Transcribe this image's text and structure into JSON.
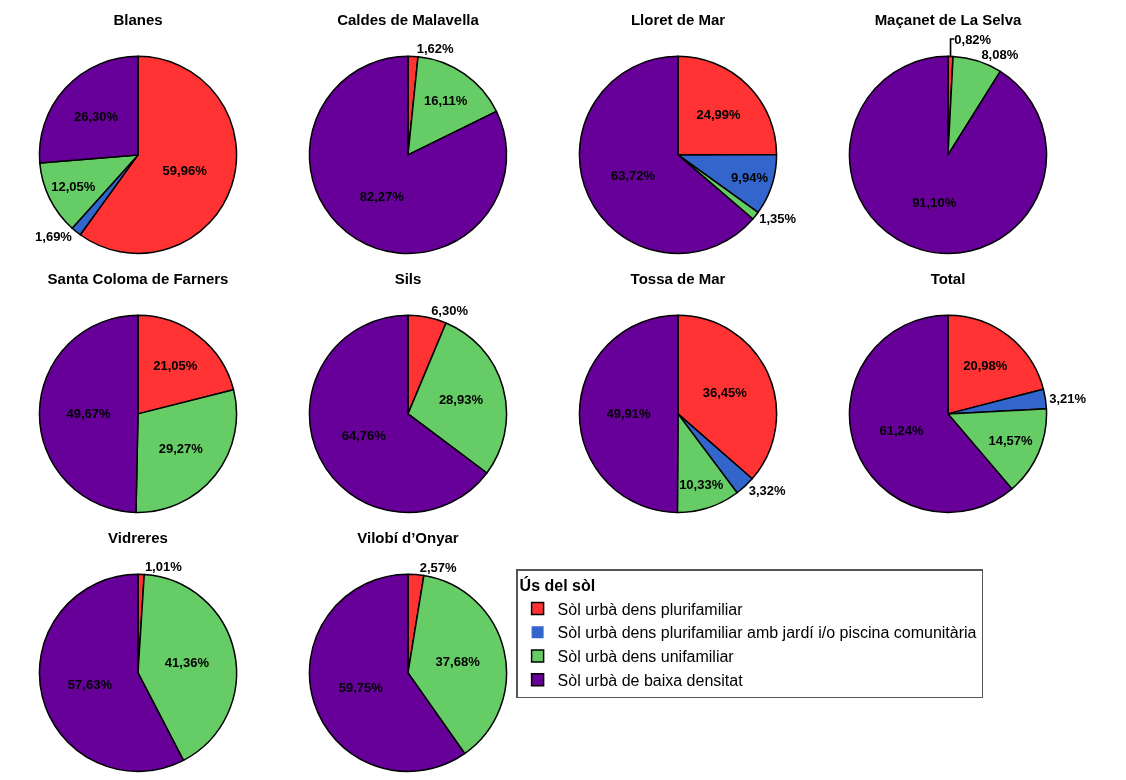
{
  "chart_data": [
    {
      "type": "pie",
      "title": "Blanes",
      "categories": [
        null,
        null,
        null,
        null
      ],
      "values": [
        59.96,
        1.69,
        12.05,
        26.3
      ],
      "value_labels": [
        "59,96%",
        "1,69%",
        "12,05%",
        "26,30%"
      ],
      "colors": [
        "#ff3333",
        "#3366cc",
        "#66cc66",
        "#660099"
      ],
      "legend": false
    },
    {
      "type": "pie",
      "title": "Caldes de Malavella",
      "categories": [
        null,
        null,
        null,
        null
      ],
      "values": [
        1.62,
        0,
        16.11,
        82.27
      ],
      "value_labels": [
        "1,62%",
        null,
        "16,11%",
        "82,27%"
      ],
      "colors": [
        "#ff3333",
        "#3366cc",
        "#66cc66",
        "#660099"
      ],
      "legend": false
    },
    {
      "type": "pie",
      "title": "Lloret de Mar",
      "categories": [
        null,
        null,
        null,
        null
      ],
      "values": [
        24.99,
        9.94,
        1.35,
        63.72
      ],
      "value_labels": [
        "24,99%",
        "9,94%",
        "1,35%",
        "63,72%"
      ],
      "colors": [
        "#ff3333",
        "#3366cc",
        "#66cc66",
        "#660099"
      ],
      "legend": false
    },
    {
      "type": "pie",
      "title": "Maçanet de La Selva",
      "categories": [
        null,
        null,
        null,
        null
      ],
      "values": [
        0.82,
        0,
        8.08,
        91.1
      ],
      "value_labels": [
        "0,82%",
        null,
        "8,08%",
        "91,10%"
      ],
      "colors": [
        "#ff3333",
        "#3366cc",
        "#66cc66",
        "#660099"
      ],
      "legend": false
    },
    {
      "type": "pie",
      "title": "Santa Coloma de Farners",
      "categories": [
        null,
        null,
        null,
        null
      ],
      "values": [
        21.05,
        0,
        29.27,
        49.67
      ],
      "value_labels": [
        "21,05%",
        null,
        "29,27%",
        "49,67%"
      ],
      "colors": [
        "#ff3333",
        "#3366cc",
        "#66cc66",
        "#660099"
      ],
      "legend": false
    },
    {
      "type": "pie",
      "title": "Sils",
      "categories": [
        null,
        null,
        null,
        null
      ],
      "values": [
        6.3,
        0,
        28.93,
        64.76
      ],
      "value_labels": [
        "6,30%",
        null,
        "28,93%",
        "64,76%"
      ],
      "colors": [
        "#ff3333",
        "#3366cc",
        "#66cc66",
        "#660099"
      ],
      "legend": false
    },
    {
      "type": "pie",
      "title": "Tossa de Mar",
      "categories": [
        null,
        null,
        null,
        null
      ],
      "values": [
        36.45,
        3.32,
        10.33,
        49.91
      ],
      "value_labels": [
        "36,45%",
        "3,32%",
        "10,33%",
        "49,91%"
      ],
      "colors": [
        "#ff3333",
        "#3366cc",
        "#66cc66",
        "#660099"
      ],
      "legend": false
    },
    {
      "type": "pie",
      "title": "Total",
      "categories": [
        null,
        null,
        null,
        null
      ],
      "values": [
        20.98,
        3.21,
        14.57,
        61.24
      ],
      "value_labels": [
        "20,98%",
        "3,21%",
        "14,57%",
        "61,24%"
      ],
      "colors": [
        "#ff3333",
        "#3366cc",
        "#66cc66",
        "#660099"
      ],
      "legend": false
    },
    {
      "type": "pie",
      "title": "Vidreres",
      "categories": [
        null,
        null,
        null,
        null
      ],
      "values": [
        1.01,
        0,
        41.36,
        57.63
      ],
      "value_labels": [
        "1,01%",
        null,
        "41,36%",
        "57,63%"
      ],
      "colors": [
        "#ff3333",
        "#3366cc",
        "#66cc66",
        "#660099"
      ],
      "legend": false
    },
    {
      "type": "pie",
      "title": "Vilobí d’Onyar",
      "categories": [
        "Sòl urbà dens plurifamiliar",
        "Sòl urbà dens plurifamiliar amb jardí i/o piscina comunitària",
        "Sòl urbà dens unifamiliar",
        "Sòl urbà de baixa densitat"
      ],
      "values": [
        2.57,
        0,
        37.68,
        59.75
      ],
      "value_labels": [
        "2,57%",
        null,
        "37,68%",
        "59,75%"
      ],
      "colors": [
        "#ff3333",
        "#3366cc",
        "#66cc66",
        "#660099"
      ],
      "legend": "right",
      "legend_title": "Ús del sòl"
    }
  ]
}
